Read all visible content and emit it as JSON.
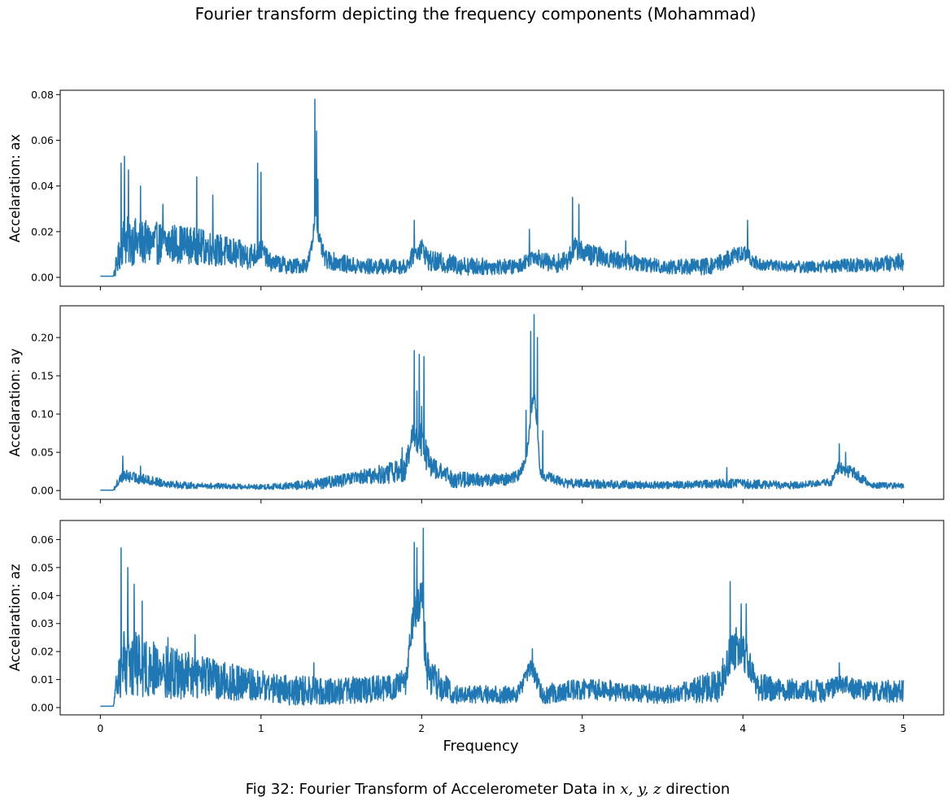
{
  "title": "Fourier transform depicting the frequency components (Mohammad)",
  "caption": {
    "prefix": "Fig 32: Fourier Transform of Accelerometer Data in ",
    "vars": "x, y, z",
    "suffix": " direction"
  },
  "colors": {
    "line": "#1f77b4",
    "axes": "#000000",
    "background": "#ffffff"
  },
  "chart_data": [
    {
      "type": "line",
      "ylabel": "Accelaration: ax",
      "xlim": [
        -0.25,
        5.25
      ],
      "ylim": [
        -0.0039,
        0.0819
      ],
      "xticks": [
        0,
        1,
        2,
        3,
        4,
        5
      ],
      "show_xtick_labels": false,
      "yticks": [
        0.0,
        0.02,
        0.04,
        0.06,
        0.08
      ],
      "ytick_labels": [
        "0.00",
        "0.02",
        "0.04",
        "0.06",
        "0.08"
      ],
      "series": [
        {
          "base": [
            [
              0,
              0.0005
            ],
            [
              0.08,
              0.0005
            ],
            [
              0.1,
              0.004
            ],
            [
              0.14,
              0.014
            ],
            [
              0.3,
              0.013
            ],
            [
              0.5,
              0.013
            ],
            [
              0.7,
              0.011
            ],
            [
              0.9,
              0.008
            ],
            [
              0.97,
              0.009
            ],
            [
              1.0,
              0.012
            ],
            [
              1.05,
              0.006
            ],
            [
              1.2,
              0.004
            ],
            [
              1.29,
              0.005
            ],
            [
              1.32,
              0.014
            ],
            [
              1.34,
              0.03
            ],
            [
              1.36,
              0.016
            ],
            [
              1.4,
              0.007
            ],
            [
              1.6,
              0.004
            ],
            [
              1.9,
              0.004
            ],
            [
              1.95,
              0.009
            ],
            [
              2.0,
              0.012
            ],
            [
              2.05,
              0.006
            ],
            [
              2.3,
              0.004
            ],
            [
              2.6,
              0.004
            ],
            [
              2.7,
              0.009
            ],
            [
              2.8,
              0.005
            ],
            [
              2.9,
              0.006
            ],
            [
              2.95,
              0.012
            ],
            [
              3.05,
              0.009
            ],
            [
              3.2,
              0.007
            ],
            [
              3.3,
              0.006
            ],
            [
              3.5,
              0.004
            ],
            [
              3.8,
              0.004
            ],
            [
              3.9,
              0.007
            ],
            [
              4.0,
              0.01
            ],
            [
              4.1,
              0.005
            ],
            [
              4.4,
              0.004
            ],
            [
              4.8,
              0.005
            ],
            [
              5.0,
              0.006
            ]
          ],
          "noise": [
            [
              0,
              0
            ],
            [
              0.08,
              0
            ],
            [
              0.1,
              0.006
            ],
            [
              0.15,
              0.014
            ],
            [
              0.3,
              0.012
            ],
            [
              0.6,
              0.01
            ],
            [
              0.9,
              0.008
            ],
            [
              1.05,
              0.005
            ],
            [
              1.3,
              0.004
            ],
            [
              1.4,
              0.005
            ],
            [
              1.9,
              0.004
            ],
            [
              2.0,
              0.006
            ],
            [
              2.6,
              0.004
            ],
            [
              3.0,
              0.006
            ],
            [
              3.4,
              0.004
            ],
            [
              3.95,
              0.005
            ],
            [
              4.2,
              0.003
            ],
            [
              4.8,
              0.004
            ],
            [
              5.0,
              0.005
            ]
          ],
          "peaks": [
            [
              0.13,
              0.05
            ],
            [
              0.15,
              0.053
            ],
            [
              0.175,
              0.047
            ],
            [
              0.25,
              0.04
            ],
            [
              0.39,
              0.032
            ],
            [
              0.6,
              0.044
            ],
            [
              0.7,
              0.036
            ],
            [
              0.98,
              0.05
            ],
            [
              1.0,
              0.046
            ],
            [
              1.335,
              0.078
            ],
            [
              1.345,
              0.064
            ],
            [
              1.355,
              0.043
            ],
            [
              1.955,
              0.025
            ],
            [
              2.67,
              0.021
            ],
            [
              2.94,
              0.035
            ],
            [
              2.98,
              0.032
            ],
            [
              3.27,
              0.016
            ],
            [
              4.03,
              0.025
            ]
          ]
        }
      ]
    },
    {
      "type": "line",
      "ylabel": "Accelaration: ay",
      "xlim": [
        -0.25,
        5.25
      ],
      "ylim": [
        -0.0115,
        0.2415
      ],
      "xticks": [
        0,
        1,
        2,
        3,
        4,
        5
      ],
      "show_xtick_labels": false,
      "yticks": [
        0.0,
        0.05,
        0.1,
        0.15,
        0.2
      ],
      "ytick_labels": [
        "0.00",
        "0.05",
        "0.10",
        "0.15",
        "0.20"
      ],
      "series": [
        {
          "base": [
            [
              0,
              0.0005
            ],
            [
              0.08,
              0.0005
            ],
            [
              0.1,
              0.006
            ],
            [
              0.14,
              0.018
            ],
            [
              0.3,
              0.012
            ],
            [
              0.5,
              0.006
            ],
            [
              1.0,
              0.004
            ],
            [
              1.3,
              0.006
            ],
            [
              1.6,
              0.014
            ],
            [
              1.8,
              0.02
            ],
            [
              1.9,
              0.025
            ],
            [
              1.95,
              0.07
            ],
            [
              2.0,
              0.06
            ],
            [
              2.05,
              0.03
            ],
            [
              2.2,
              0.012
            ],
            [
              2.5,
              0.012
            ],
            [
              2.6,
              0.018
            ],
            [
              2.65,
              0.04
            ],
            [
              2.7,
              0.13
            ],
            [
              2.74,
              0.02
            ],
            [
              2.9,
              0.008
            ],
            [
              3.5,
              0.006
            ],
            [
              3.9,
              0.008
            ],
            [
              4.3,
              0.006
            ],
            [
              4.55,
              0.01
            ],
            [
              4.6,
              0.03
            ],
            [
              4.7,
              0.02
            ],
            [
              4.8,
              0.006
            ],
            [
              5.0,
              0.005
            ]
          ],
          "noise": [
            [
              0,
              0
            ],
            [
              0.08,
              0
            ],
            [
              0.1,
              0.008
            ],
            [
              0.15,
              0.01
            ],
            [
              0.3,
              0.008
            ],
            [
              0.6,
              0.005
            ],
            [
              1.0,
              0.004
            ],
            [
              1.6,
              0.012
            ],
            [
              1.9,
              0.02
            ],
            [
              2.0,
              0.03
            ],
            [
              2.1,
              0.015
            ],
            [
              2.5,
              0.01
            ],
            [
              2.8,
              0.008
            ],
            [
              3.5,
              0.006
            ],
            [
              4.0,
              0.008
            ],
            [
              4.5,
              0.005
            ],
            [
              4.65,
              0.012
            ],
            [
              4.8,
              0.005
            ],
            [
              5.0,
              0.005
            ]
          ],
          "peaks": [
            [
              0.14,
              0.045
            ],
            [
              0.25,
              0.032
            ],
            [
              1.88,
              0.056
            ],
            [
              1.955,
              0.183
            ],
            [
              1.97,
              0.13
            ],
            [
              1.985,
              0.178
            ],
            [
              2.015,
              0.175
            ],
            [
              2.0,
              0.11
            ],
            [
              2.65,
              0.105
            ],
            [
              2.68,
              0.208
            ],
            [
              2.7,
              0.23
            ],
            [
              2.72,
              0.2
            ],
            [
              2.755,
              0.078
            ],
            [
              3.9,
              0.03
            ],
            [
              4.6,
              0.061
            ],
            [
              4.64,
              0.05
            ]
          ]
        }
      ]
    },
    {
      "type": "line",
      "ylabel": "Accelaration: az",
      "xlabel": "Frequency",
      "xlim": [
        -0.25,
        5.25
      ],
      "ylim": [
        -0.0026,
        0.0668
      ],
      "xticks": [
        0,
        1,
        2,
        3,
        4,
        5
      ],
      "xtick_labels": [
        "0",
        "1",
        "2",
        "3",
        "4",
        "5"
      ],
      "show_xtick_labels": true,
      "yticks": [
        0.0,
        0.01,
        0.02,
        0.03,
        0.04,
        0.05,
        0.06
      ],
      "ytick_labels": [
        "0.00",
        "0.01",
        "0.02",
        "0.03",
        "0.04",
        "0.05",
        "0.06"
      ],
      "series": [
        {
          "base": [
            [
              0,
              0.0005
            ],
            [
              0.08,
              0.0005
            ],
            [
              0.1,
              0.005
            ],
            [
              0.14,
              0.015
            ],
            [
              0.3,
              0.012
            ],
            [
              0.5,
              0.01
            ],
            [
              0.8,
              0.008
            ],
            [
              1.2,
              0.005
            ],
            [
              1.5,
              0.005
            ],
            [
              1.8,
              0.006
            ],
            [
              1.9,
              0.008
            ],
            [
              1.95,
              0.03
            ],
            [
              2.0,
              0.035
            ],
            [
              2.04,
              0.01
            ],
            [
              2.2,
              0.004
            ],
            [
              2.6,
              0.004
            ],
            [
              2.68,
              0.014
            ],
            [
              2.75,
              0.004
            ],
            [
              3.0,
              0.006
            ],
            [
              3.5,
              0.004
            ],
            [
              3.85,
              0.006
            ],
            [
              3.93,
              0.02
            ],
            [
              4.0,
              0.018
            ],
            [
              4.1,
              0.006
            ],
            [
              4.5,
              0.005
            ],
            [
              4.6,
              0.007
            ],
            [
              4.8,
              0.005
            ],
            [
              5.0,
              0.005
            ]
          ],
          "noise": [
            [
              0,
              0
            ],
            [
              0.08,
              0
            ],
            [
              0.1,
              0.008
            ],
            [
              0.15,
              0.016
            ],
            [
              0.3,
              0.013
            ],
            [
              0.6,
              0.01
            ],
            [
              1.0,
              0.007
            ],
            [
              1.5,
              0.006
            ],
            [
              1.9,
              0.006
            ],
            [
              2.0,
              0.012
            ],
            [
              2.2,
              0.004
            ],
            [
              2.6,
              0.004
            ],
            [
              3.0,
              0.005
            ],
            [
              3.6,
              0.004
            ],
            [
              3.95,
              0.01
            ],
            [
              4.2,
              0.005
            ],
            [
              5.0,
              0.005
            ]
          ],
          "peaks": [
            [
              0.13,
              0.057
            ],
            [
              0.17,
              0.05
            ],
            [
              0.21,
              0.044
            ],
            [
              0.26,
              0.038
            ],
            [
              0.42,
              0.025
            ],
            [
              0.59,
              0.026
            ],
            [
              1.33,
              0.016
            ],
            [
              1.955,
              0.059
            ],
            [
              1.97,
              0.057
            ],
            [
              2.01,
              0.064
            ],
            [
              2.69,
              0.021
            ],
            [
              3.92,
              0.045
            ],
            [
              3.99,
              0.037
            ],
            [
              4.02,
              0.037
            ],
            [
              4.6,
              0.016
            ]
          ]
        }
      ]
    }
  ]
}
